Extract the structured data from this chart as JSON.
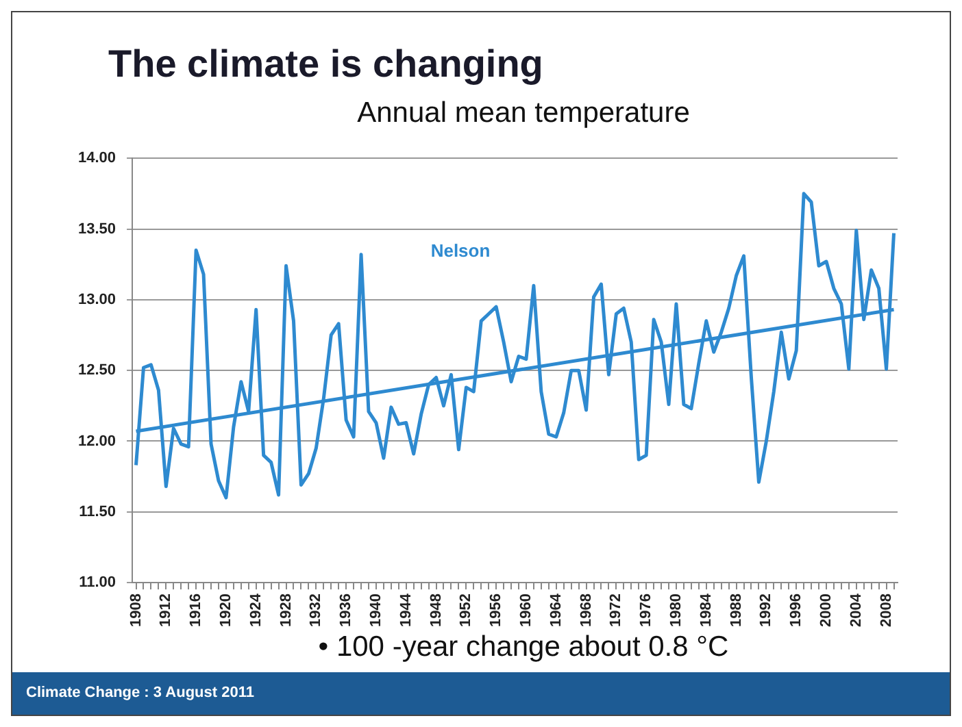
{
  "chart_data": {
    "type": "line",
    "title": "The climate is changing",
    "subtitle": "Annual mean temperature",
    "x": [
      1908,
      1909,
      1910,
      1911,
      1912,
      1913,
      1914,
      1915,
      1916,
      1917,
      1918,
      1919,
      1920,
      1921,
      1922,
      1923,
      1924,
      1925,
      1926,
      1927,
      1928,
      1929,
      1930,
      1931,
      1932,
      1933,
      1934,
      1935,
      1936,
      1937,
      1938,
      1939,
      1940,
      1941,
      1942,
      1943,
      1944,
      1945,
      1946,
      1947,
      1948,
      1949,
      1950,
      1951,
      1952,
      1953,
      1954,
      1955,
      1956,
      1957,
      1958,
      1959,
      1960,
      1961,
      1962,
      1963,
      1964,
      1965,
      1966,
      1967,
      1968,
      1969,
      1970,
      1971,
      1972,
      1973,
      1974,
      1975,
      1976,
      1977,
      1978,
      1979,
      1980,
      1981,
      1982,
      1983,
      1984,
      1985,
      1986,
      1987,
      1988,
      1989,
      1990,
      1991,
      1992,
      1993,
      1994,
      1995,
      1996,
      1997,
      1998,
      1999,
      2000,
      2001,
      2002,
      2003,
      2004,
      2005,
      2006,
      2007,
      2008,
      2009
    ],
    "series": [
      {
        "name": "Nelson",
        "color": "#2e8ad0",
        "values": [
          11.83,
          12.52,
          12.54,
          12.36,
          11.68,
          12.09,
          11.98,
          11.96,
          13.35,
          13.18,
          11.98,
          11.72,
          11.6,
          12.1,
          12.42,
          12.21,
          12.93,
          11.9,
          11.85,
          11.62,
          13.24,
          12.85,
          11.69,
          11.77,
          11.95,
          12.3,
          12.75,
          12.83,
          12.15,
          12.03,
          13.32,
          12.21,
          12.13,
          11.88,
          12.24,
          12.12,
          12.13,
          11.91,
          12.19,
          12.4,
          12.45,
          12.25,
          12.47,
          11.94,
          12.38,
          12.35,
          12.85,
          12.9,
          12.95,
          12.7,
          12.42,
          12.6,
          12.58,
          13.1,
          12.35,
          12.05,
          12.03,
          12.2,
          12.5,
          12.5,
          12.22,
          13.02,
          13.11,
          12.47,
          12.9,
          12.94,
          12.7,
          11.87,
          11.9,
          12.86,
          12.7,
          12.26,
          12.97,
          12.26,
          12.23,
          12.55,
          12.85,
          12.63,
          12.77,
          12.94,
          13.17,
          13.31,
          12.45,
          11.71,
          12,
          12.35,
          12.77,
          12.44,
          12.64,
          13.75,
          13.69,
          13.24,
          13.27,
          13.08,
          12.97,
          12.51,
          13.49,
          12.86,
          13.21,
          13.08,
          12.51,
          13.47
        ]
      },
      {
        "type": "line",
        "color": "#2e8ad0",
        "x": [
          1908,
          2009
        ],
        "values": [
          12.07,
          12.93
        ]
      }
    ],
    "xlim": [
      1907.5,
      2009.5
    ],
    "xticks": [
      1908,
      {
        "value": 1909,
        "label": null
      },
      {
        "value": 1910,
        "label": null
      },
      {
        "value": 1911,
        "label": null
      },
      1912,
      {
        "value": 1913,
        "label": null
      },
      {
        "value": 1914,
        "label": null
      },
      {
        "value": 1915,
        "label": null
      },
      1916,
      {
        "value": 1917,
        "label": null
      },
      {
        "value": 1918,
        "label": null
      },
      {
        "value": 1919,
        "label": null
      },
      1920,
      {
        "value": 1921,
        "label": null
      },
      {
        "value": 1922,
        "label": null
      },
      {
        "value": 1923,
        "label": null
      },
      1924,
      {
        "value": 1925,
        "label": null
      },
      {
        "value": 1926,
        "label": null
      },
      {
        "value": 1927,
        "label": null
      },
      1928,
      {
        "value": 1929,
        "label": null
      },
      {
        "value": 1930,
        "label": null
      },
      {
        "value": 1931,
        "label": null
      },
      1932,
      {
        "value": 1933,
        "label": null
      },
      {
        "value": 1934,
        "label": null
      },
      {
        "value": 1935,
        "label": null
      },
      1936,
      {
        "value": 1937,
        "label": null
      },
      {
        "value": 1938,
        "label": null
      },
      {
        "value": 1939,
        "label": null
      },
      1940,
      {
        "value": 1941,
        "label": null
      },
      {
        "value": 1942,
        "label": null
      },
      {
        "value": 1943,
        "label": null
      },
      1944,
      {
        "value": 1945,
        "label": null
      },
      {
        "value": 1946,
        "label": null
      },
      {
        "value": 1947,
        "label": null
      },
      1948,
      {
        "value": 1949,
        "label": null
      },
      {
        "value": 1950,
        "label": null
      },
      {
        "value": 1951,
        "label": null
      },
      1952,
      {
        "value": 1953,
        "label": null
      },
      {
        "value": 1954,
        "label": null
      },
      {
        "value": 1955,
        "label": null
      },
      1956,
      {
        "value": 1957,
        "label": null
      },
      {
        "value": 1958,
        "label": null
      },
      {
        "value": 1959,
        "label": null
      },
      1960,
      {
        "value": 1961,
        "label": null
      },
      {
        "value": 1962,
        "label": null
      },
      {
        "value": 1963,
        "label": null
      },
      1964,
      {
        "value": 1965,
        "label": null
      },
      {
        "value": 1966,
        "label": null
      },
      {
        "value": 1967,
        "label": null
      },
      1968,
      {
        "value": 1969,
        "label": null
      },
      {
        "value": 1970,
        "label": null
      },
      {
        "value": 1971,
        "label": null
      },
      1972,
      {
        "value": 1973,
        "label": null
      },
      {
        "value": 1974,
        "label": null
      },
      {
        "value": 1975,
        "label": null
      },
      1976,
      {
        "value": 1977,
        "label": null
      },
      {
        "value": 1978,
        "label": null
      },
      {
        "value": 1979,
        "label": null
      },
      1980,
      {
        "value": 1981,
        "label": null
      },
      {
        "value": 1982,
        "label": null
      },
      {
        "value": 1983,
        "label": null
      },
      1984,
      {
        "value": 1985,
        "label": null
      },
      {
        "value": 1986,
        "label": null
      },
      {
        "value": 1987,
        "label": null
      },
      1988,
      {
        "value": 1989,
        "label": null
      },
      {
        "value": 1990,
        "label": null
      },
      {
        "value": 1991,
        "label": null
      },
      1992,
      {
        "value": 1993,
        "label": null
      },
      {
        "value": 1994,
        "label": null
      },
      {
        "value": 1995,
        "label": null
      },
      1996,
      {
        "value": 1997,
        "label": null
      },
      {
        "value": 1998,
        "label": null
      },
      {
        "value": 1999,
        "label": null
      },
      2000,
      {
        "value": 2001,
        "label": null
      },
      {
        "value": 2002,
        "label": null
      },
      {
        "value": 2003,
        "label": null
      },
      2004,
      {
        "value": 2005,
        "label": null
      },
      {
        "value": 2006,
        "label": null
      },
      {
        "value": 2007,
        "label": null
      },
      2008,
      {
        "value": 2009,
        "label": null
      }
    ],
    "ylim": [
      11,
      14
    ],
    "yticks": [
      {
        "value": 11,
        "label": "11.00"
      },
      {
        "value": 11.5,
        "label": "11.50"
      },
      {
        "value": 12,
        "label": "12.00"
      },
      {
        "value": 12.5,
        "label": "12.50"
      },
      {
        "value": 13,
        "label": "13.00"
      },
      {
        "value": 13.5,
        "label": "13.50"
      },
      {
        "value": 14,
        "label": "14.00"
      }
    ],
    "grid": "y",
    "marker": "none",
    "line_style": "solid",
    "annotations": [
      "• 100 -year change about 0.8 °C",
      "Climate Change : 3 August 2011"
    ]
  }
}
